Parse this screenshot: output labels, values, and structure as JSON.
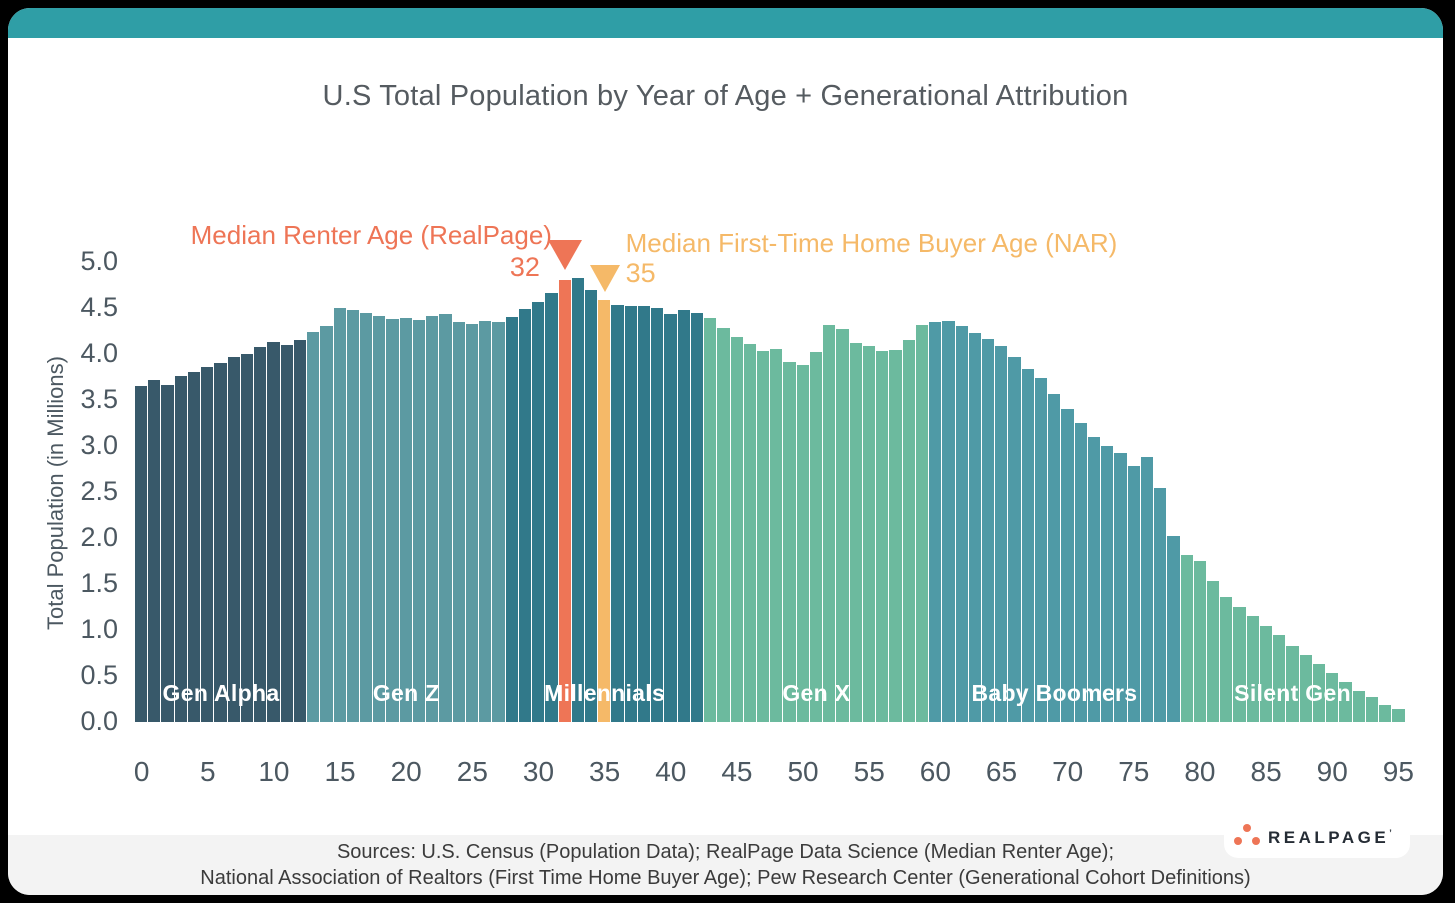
{
  "header": {
    "title": "U.S Total Population by Year of Age + Generational Attribution"
  },
  "chart_data": {
    "type": "bar",
    "title": "U.S Total Population by Year of Age + Generational Attribution",
    "xlabel": "",
    "ylabel": "Total Population (in Millions)",
    "ylim": [
      0,
      5
    ],
    "ytick_step": 0.5,
    "xticks": [
      0,
      5,
      10,
      15,
      20,
      25,
      30,
      35,
      40,
      45,
      50,
      55,
      60,
      65,
      70,
      75,
      80,
      85,
      90,
      95
    ],
    "grid": false,
    "x": "ages 0 through 95, one bar per single year of age",
    "values": [
      3.65,
      3.72,
      3.66,
      3.76,
      3.8,
      3.86,
      3.9,
      3.97,
      4.0,
      4.08,
      4.13,
      4.1,
      4.15,
      4.24,
      4.3,
      4.5,
      4.48,
      4.45,
      4.41,
      4.38,
      4.39,
      4.37,
      4.41,
      4.43,
      4.35,
      4.33,
      4.36,
      4.35,
      4.4,
      4.49,
      4.57,
      4.66,
      4.8,
      4.83,
      4.7,
      4.59,
      4.53,
      4.52,
      4.52,
      4.5,
      4.44,
      4.48,
      4.45,
      4.39,
      4.28,
      4.18,
      4.11,
      4.03,
      4.05,
      3.91,
      3.88,
      4.02,
      4.32,
      4.27,
      4.12,
      4.09,
      4.03,
      4.04,
      4.15,
      4.32,
      4.35,
      4.36,
      4.3,
      4.23,
      4.16,
      4.09,
      3.97,
      3.84,
      3.74,
      3.57,
      3.4,
      3.25,
      3.1,
      3.0,
      2.92,
      2.78,
      2.88,
      2.54,
      2.02,
      1.82,
      1.75,
      1.53,
      1.36,
      1.25,
      1.15,
      1.04,
      0.95,
      0.83,
      0.73,
      0.63,
      0.53,
      0.44,
      0.34,
      0.27,
      0.18,
      0.14
    ],
    "generations": [
      {
        "name": "Gen Alpha",
        "from": 0,
        "to": 12,
        "color": "#38596A"
      },
      {
        "name": "Gen Z",
        "from": 13,
        "to": 27,
        "color": "#5C9AA2"
      },
      {
        "name": "Millennials",
        "from": 28,
        "to": 42,
        "color": "#31798A"
      },
      {
        "name": "Gen X",
        "from": 43,
        "to": 59,
        "color": "#6CBA9E"
      },
      {
        "name": "Baby Boomers",
        "from": 60,
        "to": 78,
        "color": "#4F9AA6"
      },
      {
        "name": "Silent Gen",
        "from": 79,
        "to": 95,
        "color": "#6CBA9E"
      }
    ],
    "markers": [
      {
        "id": "renter",
        "label": "Median Renter Age (RealPage)",
        "value_label": "32",
        "age": 32,
        "color": "#EE7556"
      },
      {
        "id": "buyer",
        "label": "Median First-Time Home Buyer Age (NAR)",
        "value_label": "35",
        "age": 35,
        "color": "#F5B968"
      }
    ]
  },
  "footer": {
    "line1": "Sources: U.S. Census (Population Data); RealPage Data Science (Median Renter Age);",
    "line2": "National Association of Realtors (First Time Home Buyer Age); Pew Research Center (Generational Cohort Definitions)"
  },
  "logo": {
    "text": "REALPAGE",
    "mark": "’"
  },
  "colors": {
    "page_background": "#000000",
    "card_background": "#FFFFFF",
    "top_bar": "#2F9EA6",
    "title_text": "#555B60",
    "axis_text": "#4C5861",
    "footer_band": "#F3F3F3",
    "footer_text": "#3B3B3B",
    "logo_text": "#252C35",
    "logo_dots": "#EE7556"
  }
}
